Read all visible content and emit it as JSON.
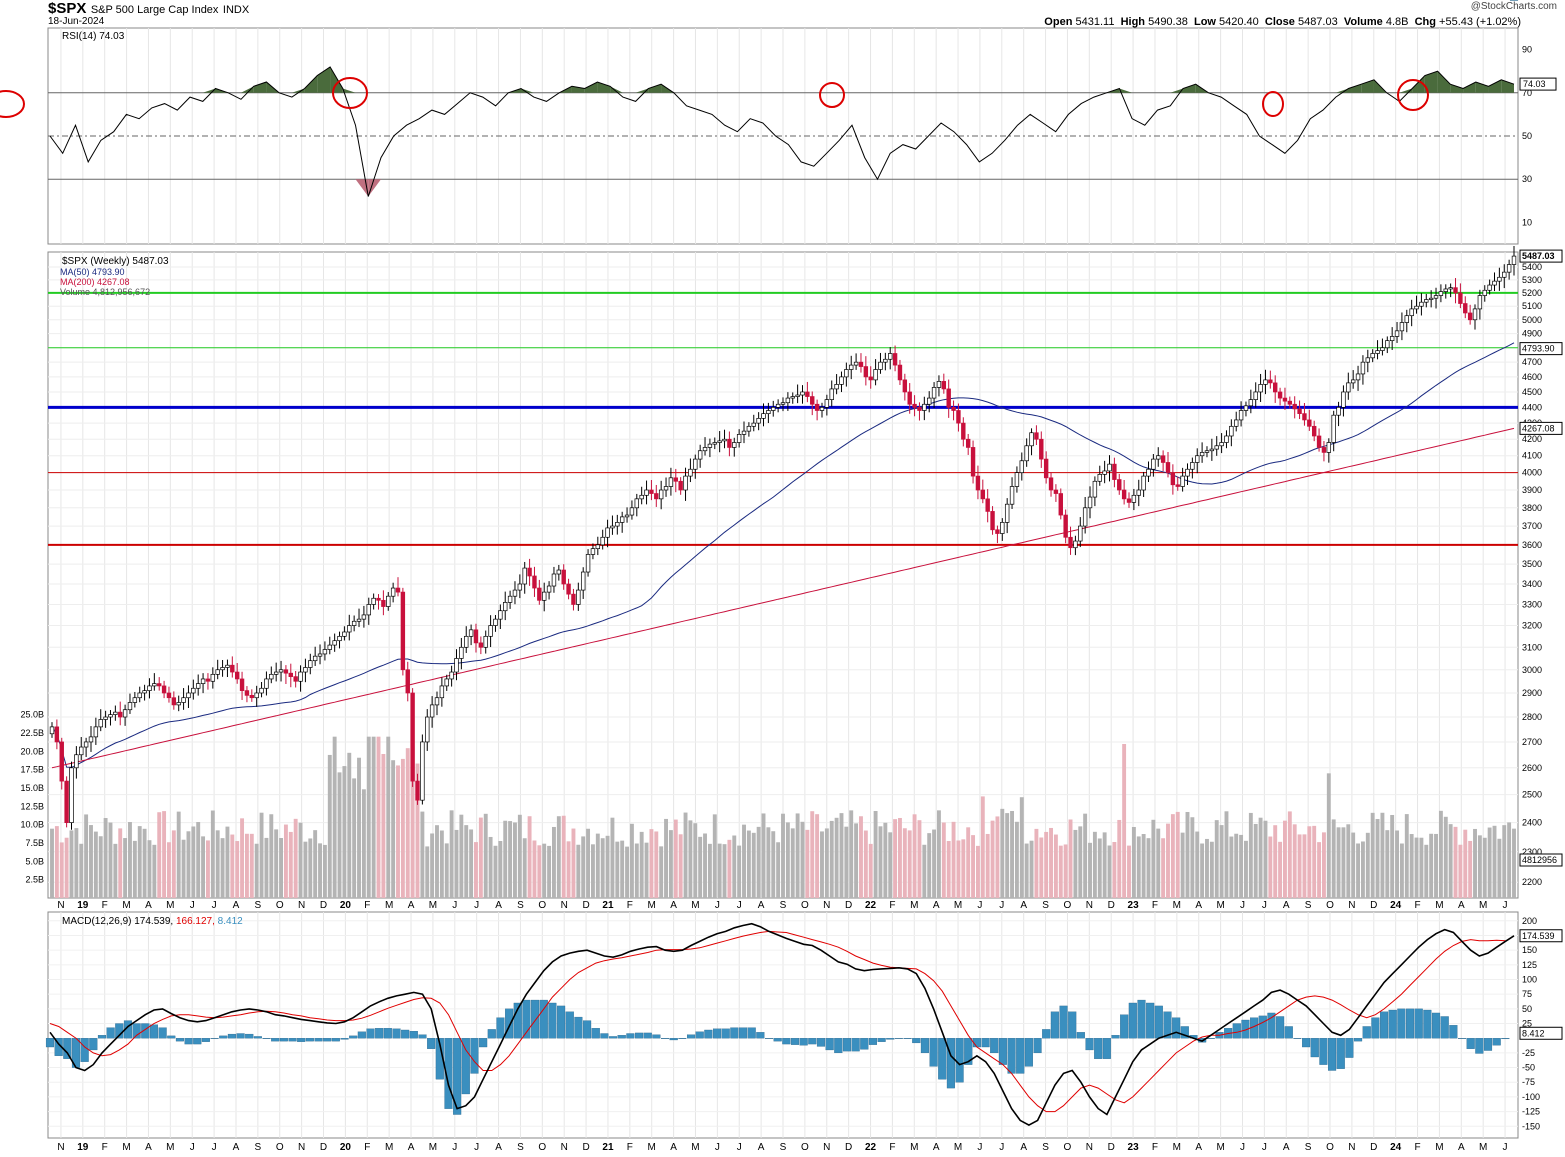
{
  "header": {
    "symbol": "$SPX",
    "name": "S&P 500 Large Cap Index",
    "exchange": "INDX",
    "date": "18-Jun-2024",
    "credit": "@StockCharts.com",
    "open_label": "Open",
    "open": "5431.11",
    "high_label": "High",
    "high": "5490.38",
    "low_label": "Low",
    "low": "5420.40",
    "close_label": "Close",
    "close": "5487.03",
    "volume_label": "Volume",
    "volume": "4.8B",
    "chg_label": "Chg",
    "chg": "+55.43 (+1.02%)"
  },
  "colors": {
    "up": "#ffffff",
    "down": "#c8103c",
    "ma50": "#1a2a80",
    "ma200": "#c8103c",
    "vol_up": "#b4b4b4",
    "vol_down": "#e9b3bb",
    "rsi_fill": "#4a6b3c",
    "macd_hist": "#3a8fbf",
    "support_green": "#22cc22",
    "support_blue": "#0000cc",
    "support_red": "#cc0000"
  },
  "chart_data": [
    {
      "type": "line",
      "title": "RSI(14) 74.03",
      "x_labels": [
        "N",
        "19",
        "F",
        "M",
        "A",
        "M",
        "J",
        "J",
        "A",
        "S",
        "O",
        "N",
        "D",
        "20",
        "F",
        "M",
        "A",
        "M",
        "J",
        "J",
        "A",
        "S",
        "O",
        "N",
        "D",
        "21",
        "F",
        "M",
        "A",
        "M",
        "J",
        "J",
        "A",
        "S",
        "O",
        "N",
        "D",
        "22",
        "F",
        "M",
        "A",
        "M",
        "J",
        "J",
        "A",
        "S",
        "O",
        "N",
        "D",
        "23",
        "F",
        "M",
        "A",
        "M",
        "J",
        "J",
        "A",
        "S",
        "O",
        "N",
        "D",
        "24",
        "F",
        "M",
        "A",
        "M",
        "J"
      ],
      "y_ticks": [
        90,
        70,
        50,
        30,
        10
      ],
      "ylim": [
        0,
        100
      ],
      "reference_lines": [
        70,
        50,
        30
      ],
      "last_value": "74.03",
      "values": [
        50,
        42,
        55,
        38,
        48,
        52,
        60,
        58,
        63,
        65,
        62,
        68,
        66,
        72,
        70,
        67,
        73,
        75,
        70,
        68,
        72,
        78,
        82,
        72,
        55,
        22,
        40,
        50,
        55,
        58,
        62,
        60,
        65,
        70,
        68,
        64,
        70,
        72,
        68,
        66,
        70,
        73,
        72,
        75,
        73,
        68,
        66,
        72,
        74,
        70,
        64,
        62,
        60,
        55,
        52,
        58,
        56,
        50,
        46,
        38,
        36,
        42,
        48,
        55,
        40,
        30,
        42,
        46,
        44,
        50,
        56,
        52,
        46,
        38,
        42,
        48,
        55,
        60,
        56,
        52,
        60,
        65,
        68,
        70,
        72,
        58,
        55,
        62,
        64,
        72,
        74,
        70,
        68,
        64,
        60,
        50,
        46,
        42,
        48,
        58,
        62,
        68,
        72,
        74,
        76,
        70,
        66,
        72,
        78,
        80,
        74,
        72,
        75,
        73,
        76,
        74
      ]
    },
    {
      "type": "candlestick",
      "title": "$SPX (Weekly) 5487.03",
      "series": [
        {
          "name": "MA(50) 4793.90",
          "last": "4793.90"
        },
        {
          "name": "MA(200) 4267.08",
          "last": "4267.08"
        },
        {
          "name": "Volume 4,812,956,672",
          "last": "4812956"
        }
      ],
      "y_ticks": [
        5400,
        5300,
        5200,
        5100,
        5000,
        4900,
        4800,
        4700,
        4600,
        4500,
        4400,
        4300,
        4200,
        4100,
        4000,
        3900,
        3800,
        3700,
        3600,
        3500,
        3400,
        3300,
        3200,
        3100,
        3000,
        2900,
        2800,
        2700,
        2600,
        2500,
        2400,
        2300,
        2200
      ],
      "volume_ticks": [
        "25.0B",
        "22.5B",
        "20.0B",
        "17.5B",
        "15.0B",
        "12.5B",
        "10.0B",
        "7.5B",
        "5.0B",
        "2.5B"
      ],
      "ylim": [
        2150,
        5520
      ],
      "last_price": "5487.03",
      "ma50_last": "4793.90",
      "ma200_last": "4267.08",
      "volume_last": "4812956",
      "horizontal_lines": [
        5200,
        4800,
        4400,
        4000,
        3600
      ],
      "closes": [
        2760,
        2700,
        2550,
        2400,
        2600,
        2650,
        2680,
        2700,
        2720,
        2760,
        2790,
        2800,
        2810,
        2820,
        2800,
        2830,
        2860,
        2880,
        2900,
        2910,
        2930,
        2940,
        2930,
        2900,
        2880,
        2850,
        2860,
        2880,
        2900,
        2920,
        2940,
        2960,
        2950,
        2980,
        3000,
        3010,
        3020,
        2990,
        2960,
        2910,
        2890,
        2880,
        2900,
        2920,
        2960,
        2980,
        2990,
        3000,
        2985,
        2970,
        2950,
        2990,
        3010,
        3040,
        3060,
        3070,
        3090,
        3110,
        3130,
        3150,
        3170,
        3200,
        3220,
        3230,
        3250,
        3300,
        3330,
        3320,
        3290,
        3340,
        3380,
        3360,
        3000,
        2900,
        2550,
        2480,
        2700,
        2800,
        2850,
        2880,
        2930,
        2960,
        2990,
        3050,
        3100,
        3150,
        3180,
        3120,
        3100,
        3150,
        3200,
        3230,
        3270,
        3310,
        3340,
        3370,
        3400,
        3480,
        3440,
        3380,
        3320,
        3360,
        3390,
        3450,
        3470,
        3400,
        3350,
        3300,
        3370,
        3460,
        3550,
        3580,
        3600,
        3640,
        3690,
        3700,
        3720,
        3750,
        3760,
        3800,
        3850,
        3870,
        3900,
        3880,
        3850,
        3900,
        3920,
        3970,
        3950,
        3900,
        3980,
        4020,
        4080,
        4130,
        4150,
        4170,
        4180,
        4190,
        4200,
        4150,
        4180,
        4230,
        4250,
        4280,
        4300,
        4330,
        4360,
        4380,
        4400,
        4420,
        4430,
        4460,
        4470,
        4480,
        4500,
        4470,
        4420,
        4380,
        4400,
        4450,
        4520,
        4550,
        4600,
        4650,
        4680,
        4700,
        4670,
        4600,
        4580,
        4650,
        4700,
        4720,
        4760,
        4680,
        4580,
        4500,
        4420,
        4400,
        4380,
        4420,
        4460,
        4530,
        4570,
        4520,
        4400,
        4380,
        4300,
        4200,
        4150,
        3980,
        3900,
        3850,
        3780,
        3680,
        3660,
        3720,
        3820,
        3920,
        4000,
        4070,
        4160,
        4240,
        4200,
        4080,
        3970,
        3900,
        3880,
        3760,
        3640,
        3585,
        3620,
        3700,
        3800,
        3860,
        3950,
        3990,
        4010,
        4050,
        3960,
        3900,
        3850,
        3830,
        3870,
        3900,
        3980,
        4020,
        4080,
        4100,
        4060,
        4000,
        3930,
        3920,
        3980,
        4020,
        4060,
        4100,
        4120,
        4130,
        4140,
        4160,
        4180,
        4220,
        4280,
        4320,
        4380,
        4410,
        4450,
        4500,
        4550,
        4580,
        4560,
        4500,
        4460,
        4440,
        4420,
        4390,
        4360,
        4320,
        4280,
        4220,
        4150,
        4120,
        4180,
        4350,
        4400,
        4500,
        4560,
        4580,
        4620,
        4700,
        4730,
        4760,
        4780,
        4800,
        4850,
        4880,
        4920,
        4980,
        5030,
        5080,
        5100,
        5130,
        5150,
        5160,
        5180,
        5210,
        5230,
        5240,
        5200,
        5120,
        5050,
        5000,
        5080,
        5180,
        5220,
        5260,
        5290,
        5320,
        5360,
        5420,
        5487
      ]
    },
    {
      "type": "line",
      "title": "MACD(12,26,9) 174.539, 166.127, 8.412",
      "series": [
        {
          "name": "MACD(12,26,9)",
          "last": "174.539"
        },
        {
          "name": "Signal",
          "last": "166.127"
        },
        {
          "name": "Histogram",
          "last": "8.412"
        }
      ],
      "y_ticks": [
        200,
        175,
        150,
        125,
        100,
        75,
        50,
        25,
        -25,
        -50,
        -75,
        -100,
        -125,
        -150
      ],
      "ylim": [
        -170,
        215
      ],
      "macd": [
        10,
        -10,
        -25,
        -50,
        -55,
        -45,
        -25,
        -10,
        5,
        20,
        30,
        40,
        48,
        50,
        42,
        35,
        30,
        28,
        30,
        35,
        40,
        45,
        48,
        50,
        48,
        45,
        40,
        38,
        35,
        32,
        30,
        28,
        26,
        25,
        28,
        35,
        45,
        55,
        62,
        68,
        72,
        75,
        78,
        75,
        50,
        -10,
        -80,
        -120,
        -115,
        -100,
        -70,
        -40,
        -10,
        20,
        50,
        75,
        95,
        115,
        130,
        140,
        145,
        148,
        150,
        145,
        140,
        138,
        142,
        148,
        152,
        155,
        156,
        150,
        148,
        150,
        158,
        165,
        172,
        178,
        182,
        188,
        192,
        195,
        190,
        182,
        176,
        170,
        165,
        160,
        158,
        150,
        140,
        130,
        126,
        118,
        115,
        117,
        118,
        119,
        120,
        118,
        110,
        85,
        50,
        10,
        -30,
        -45,
        -40,
        -30,
        -40,
        -60,
        -90,
        -120,
        -140,
        -148,
        -140,
        -110,
        -80,
        -60,
        -55,
        -75,
        -100,
        -120,
        -130,
        -100,
        -70,
        -40,
        -20,
        -10,
        0,
        5,
        10,
        5,
        0,
        -5,
        5,
        15,
        25,
        35,
        45,
        55,
        65,
        78,
        82,
        75,
        65,
        55,
        40,
        25,
        10,
        5,
        15,
        35,
        55,
        75,
        95,
        110,
        125,
        140,
        155,
        168,
        178,
        185,
        180,
        165,
        150,
        140,
        145,
        155,
        165,
        174.539
      ],
      "signal": [
        25,
        20,
        10,
        0,
        -15,
        -25,
        -30,
        -28,
        -20,
        -10,
        5,
        15,
        25,
        32,
        38,
        40,
        40,
        38,
        36,
        35,
        36,
        38,
        40,
        43,
        45,
        46,
        45,
        43,
        40,
        38,
        35,
        33,
        31,
        30,
        30,
        31,
        34,
        39,
        45,
        51,
        56,
        61,
        66,
        69,
        68,
        60,
        40,
        10,
        -20,
        -40,
        -55,
        -55,
        -45,
        -30,
        -10,
        10,
        30,
        50,
        70,
        85,
        100,
        112,
        120,
        128,
        132,
        135,
        137,
        140,
        143,
        146,
        150,
        151,
        151,
        151,
        152,
        154,
        158,
        162,
        166,
        170,
        174,
        177,
        180,
        182,
        181,
        180,
        176,
        172,
        168,
        164,
        160,
        155,
        148,
        140,
        134,
        128,
        124,
        121,
        120,
        119,
        118,
        110,
        98,
        80,
        55,
        30,
        5,
        -15,
        -25,
        -35,
        -45,
        -60,
        -80,
        -100,
        -115,
        -125,
        -125,
        -115,
        -100,
        -85,
        -80,
        -85,
        -95,
        -105,
        -110,
        -100,
        -85,
        -70,
        -55,
        -40,
        -25,
        -15,
        -5,
        2,
        5,
        5,
        8,
        10,
        14,
        20,
        27,
        35,
        45,
        55,
        65,
        70,
        72,
        70,
        65,
        57,
        48,
        40,
        35,
        40,
        50,
        62,
        75,
        90,
        105,
        120,
        135,
        148,
        158,
        165,
        168,
        166,
        166,
        167,
        166.127
      ]
    }
  ]
}
